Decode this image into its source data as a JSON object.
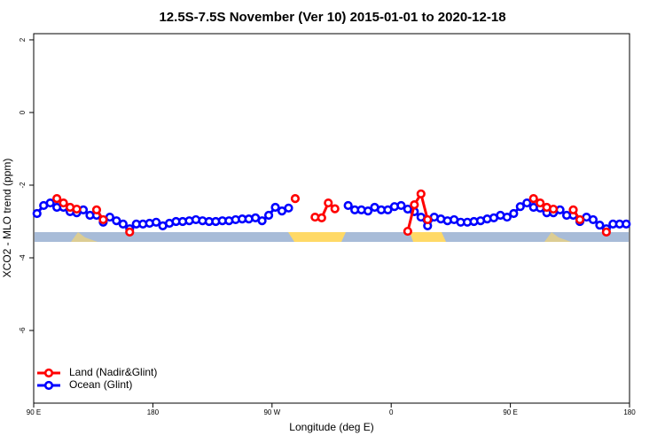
{
  "chart_data": {
    "type": "line",
    "title": "12.5S-7.5S November (Ver 10)   2015-01-01 to 2020-12-18",
    "x_label": "Longitude (deg E)",
    "y_label": "XCO2 - MLO trend (ppm)",
    "xlim": [
      90,
      540
    ],
    "ylim": [
      -8,
      2.17
    ],
    "xticks": [
      {
        "value": 90,
        "label": "90 E"
      },
      180,
      {
        "value": 270,
        "label": "90 W"
      },
      {
        "value": 360,
        "label": "0"
      },
      {
        "value": 450,
        "label": "90 E"
      },
      {
        "value": 540,
        "label": "180"
      }
    ],
    "yticks": [
      2,
      0,
      -2,
      -4,
      -6
    ],
    "legend": "bottomleft",
    "x": [
      92.5,
      97.5,
      102.5,
      107.5,
      112.5,
      117.5,
      122.5,
      127.5,
      132.5,
      137.5,
      142.5,
      147.5,
      152.5,
      157.5,
      162.5,
      167.5,
      172.5,
      177.5,
      182.5,
      187.5,
      192.5,
      197.5,
      202.5,
      207.5,
      212.5,
      217.5,
      222.5,
      227.5,
      232.5,
      237.5,
      242.5,
      247.5,
      252.5,
      257.5,
      262.5,
      267.5,
      272.5,
      277.5,
      282.5,
      287.5,
      292.5,
      297.5,
      302.5,
      307.5,
      312.5,
      317.5,
      322.5,
      327.5,
      332.5,
      337.5,
      342.5,
      347.5,
      352.5,
      357.5,
      362.5,
      367.5,
      372.5,
      377.5,
      382.5,
      387.5,
      392.5,
      397.5,
      402.5,
      407.5,
      412.5,
      417.5,
      422.5,
      427.5,
      432.5,
      437.5,
      442.5,
      447.5,
      452.5,
      457.5,
      462.5,
      467.5,
      472.5,
      477.5,
      482.5,
      487.5,
      492.5,
      497.5,
      502.5,
      507.5,
      512.5,
      517.5,
      522.5,
      527.5,
      532.5,
      537.5
    ],
    "series": [
      {
        "name": "Land (Nadir&Glint)",
        "color": "#ff0000",
        "values": [
          null,
          null,
          null,
          -2.37,
          -2.49,
          -2.61,
          -2.66,
          null,
          null,
          -2.68,
          -2.95,
          null,
          null,
          null,
          -3.29,
          null,
          null,
          null,
          null,
          null,
          null,
          null,
          null,
          null,
          null,
          null,
          null,
          null,
          null,
          null,
          null,
          null,
          null,
          null,
          null,
          null,
          null,
          null,
          null,
          -2.37,
          null,
          null,
          -2.88,
          -2.9,
          -2.49,
          -2.65,
          null,
          null,
          null,
          null,
          null,
          null,
          null,
          null,
          null,
          null,
          -3.27,
          -2.54,
          -2.24,
          -2.95,
          null,
          null,
          null,
          null,
          null,
          null,
          null,
          null,
          null,
          null,
          null,
          null,
          null,
          null,
          null,
          -2.37,
          -2.49,
          -2.61,
          -2.66,
          null,
          null,
          -2.68,
          -2.95,
          null,
          null,
          null,
          -3.29,
          null,
          null,
          null
        ]
      },
      {
        "name": "Ocean (Glint)",
        "color": "#0000ff",
        "values": [
          -2.78,
          -2.56,
          -2.49,
          -2.61,
          -2.61,
          -2.73,
          -2.76,
          -2.68,
          -2.83,
          -2.83,
          -3.02,
          -2.88,
          -2.98,
          -3.07,
          -3.2,
          -3.07,
          -3.07,
          -3.05,
          -3.02,
          -3.12,
          -3.05,
          -3.0,
          -3.0,
          -2.98,
          -2.95,
          -2.98,
          -3.0,
          -3.0,
          -2.98,
          -2.98,
          -2.95,
          -2.93,
          -2.93,
          -2.9,
          -2.98,
          -2.83,
          -2.61,
          -2.71,
          -2.63,
          null,
          null,
          null,
          null,
          null,
          null,
          null,
          null,
          -2.56,
          -2.68,
          -2.68,
          -2.71,
          -2.61,
          -2.68,
          -2.68,
          -2.59,
          -2.56,
          -2.66,
          -2.73,
          -2.88,
          -3.12,
          -2.88,
          -2.93,
          -2.98,
          -2.95,
          -3.02,
          -3.02,
          -3.0,
          -2.98,
          -2.93,
          -2.9,
          -2.83,
          -2.88,
          -2.78,
          -2.59,
          -2.49,
          -2.61,
          -2.63,
          -2.76,
          -2.76,
          -2.68,
          -2.83,
          -2.83,
          -3.0,
          -2.88,
          -2.95,
          -3.1,
          -3.2,
          -3.07,
          -3.07,
          -3.07
        ]
      }
    ]
  }
}
